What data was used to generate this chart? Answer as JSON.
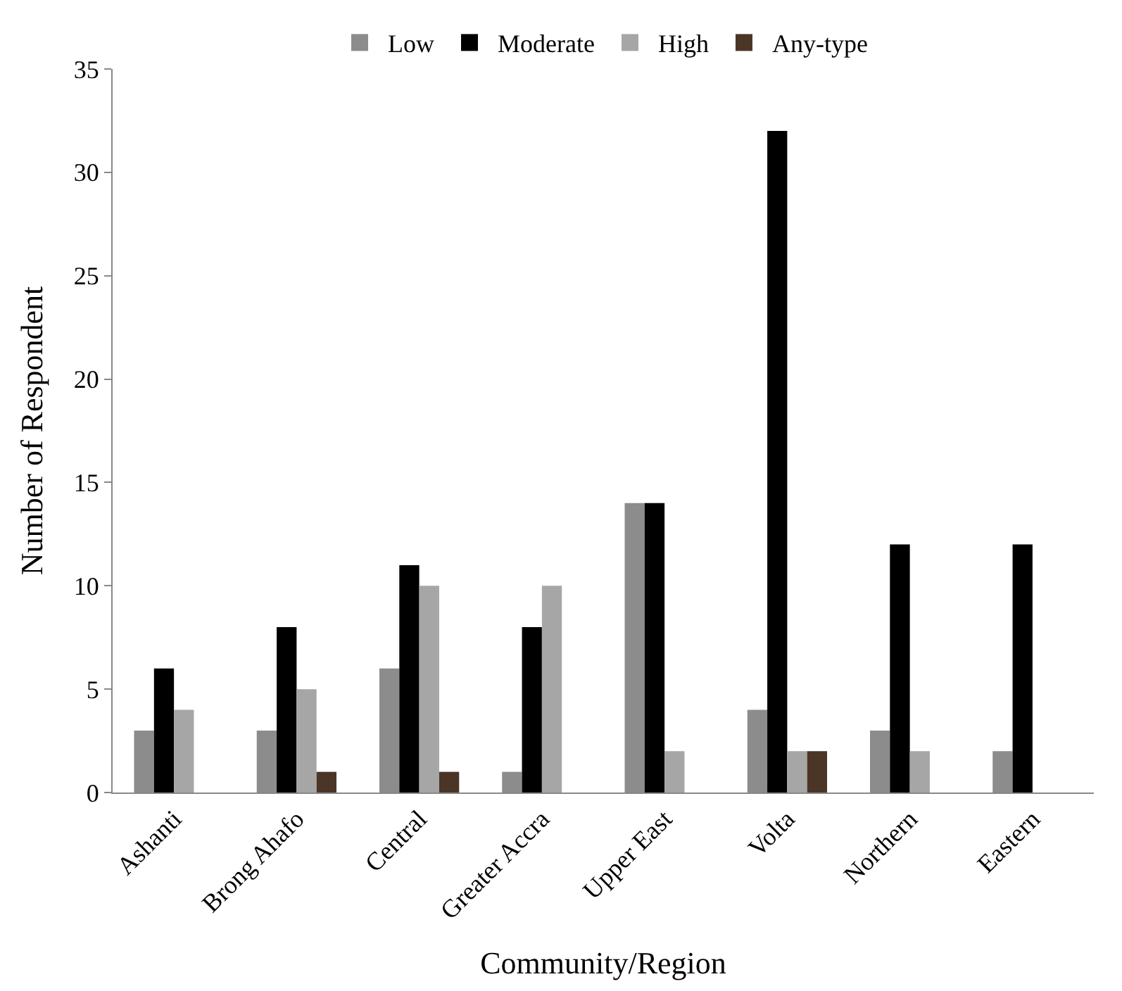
{
  "chart_data": {
    "type": "bar",
    "xlabel": "Community/Region",
    "ylabel": "Number of Respondent",
    "categories": [
      "Ashanti",
      "Brong Ahafo",
      "Central",
      "Greater Accra",
      "Upper East",
      "Volta",
      "Northern",
      "Eastern"
    ],
    "series": [
      {
        "name": "Low",
        "color": "#8c8c8c",
        "values": [
          3,
          3,
          6,
          1,
          14,
          4,
          3,
          2
        ]
      },
      {
        "name": "Moderate",
        "color": "#000000",
        "values": [
          6,
          8,
          11,
          8,
          14,
          32,
          12,
          12
        ]
      },
      {
        "name": "High",
        "color": "#a6a6a6",
        "values": [
          4,
          5,
          10,
          10,
          2,
          2,
          2,
          null
        ]
      },
      {
        "name": "Any-type",
        "color": "#4a3526",
        "values": [
          null,
          1,
          1,
          null,
          null,
          2,
          null,
          null
        ]
      }
    ],
    "ylim": [
      0,
      35
    ],
    "yticks": [
      0,
      5,
      10,
      15,
      20,
      25,
      30,
      35
    ],
    "legend": "top"
  }
}
